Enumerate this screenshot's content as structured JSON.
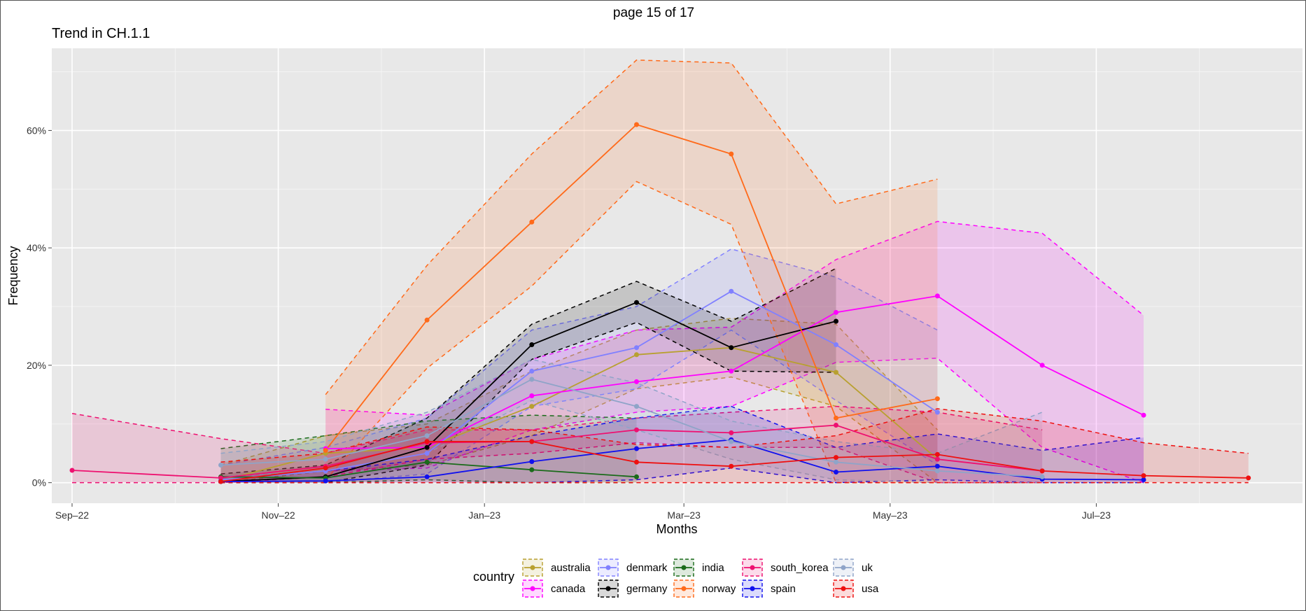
{
  "page_label": "page 15 of 17",
  "chart_data": {
    "type": "line",
    "title": "Trend in CH.1.1",
    "xlabel": "Months",
    "ylabel": "Frequency",
    "x_ticks": [
      "Sep–22",
      "Nov–22",
      "Jan–23",
      "Mar–23",
      "May–23",
      "Jul–23"
    ],
    "x_tick_dates": [
      "2022-09-01",
      "2022-11-01",
      "2023-01-01",
      "2023-03-01",
      "2023-05-01",
      "2023-07-01"
    ],
    "xlim": [
      "2022-08-26",
      "2023-08-31"
    ],
    "y_ticks": [
      "0%",
      "20%",
      "40%",
      "60%"
    ],
    "y_tick_values": [
      0,
      20,
      40,
      60
    ],
    "ylim": [
      -3.5,
      74
    ],
    "y_unit": "%",
    "grid": true,
    "legend_title": "country",
    "legend_position": "bottom",
    "legend_order": [
      "australia",
      "canada",
      "denmark",
      "germany",
      "india",
      "norway",
      "south_korea",
      "spain",
      "uk",
      "usa"
    ],
    "series": [
      {
        "name": "australia",
        "color": "#b8a030",
        "x": [
          "2022-10-15",
          "2022-11-15",
          "2022-12-15",
          "2023-01-15",
          "2023-02-15",
          "2023-03-15",
          "2023-04-15",
          "2023-05-15"
        ],
        "y": [
          0.3,
          5,
          6,
          13,
          21.8,
          23,
          18.8,
          4
        ],
        "upper": [
          3,
          8,
          10,
          19,
          26,
          28,
          27,
          9
        ],
        "lower": [
          0,
          2,
          3,
          8,
          16,
          18,
          13,
          0
        ]
      },
      {
        "name": "canada",
        "color": "#ff00ff",
        "x": [
          "2022-11-15",
          "2022-12-15",
          "2023-01-15",
          "2023-02-15",
          "2023-03-15",
          "2023-04-15",
          "2023-05-15",
          "2023-06-15",
          "2023-07-15"
        ],
        "y": [
          5.8,
          6,
          14.8,
          17.2,
          19,
          29,
          31.8,
          20,
          11.5
        ],
        "upper": [
          12.5,
          11.5,
          21,
          26,
          26.5,
          38,
          44.5,
          42.5,
          28.5
        ],
        "lower": [
          2,
          2.5,
          9,
          12,
          13,
          20.5,
          21.2,
          6,
          0
        ]
      },
      {
        "name": "denmark",
        "color": "#8080ff",
        "x": [
          "2022-10-15",
          "2022-11-15",
          "2022-12-15",
          "2023-01-15",
          "2023-02-15",
          "2023-03-15",
          "2023-04-15",
          "2023-05-15"
        ],
        "y": [
          0.5,
          2,
          5,
          19,
          23,
          32.6,
          23.5,
          12
        ],
        "upper": [
          3,
          6,
          11,
          26,
          30,
          39.8,
          35,
          26
        ],
        "lower": [
          0,
          0,
          1.5,
          13,
          16,
          26,
          14,
          3
        ]
      },
      {
        "name": "germany",
        "color": "#000000",
        "x": [
          "2022-10-15",
          "2022-11-15",
          "2022-12-15",
          "2023-01-15",
          "2023-02-15",
          "2023-03-15",
          "2023-04-15"
        ],
        "y": [
          0.2,
          1,
          6,
          23.5,
          30.7,
          23,
          27.5
        ],
        "upper": [
          1.5,
          3,
          11,
          27,
          34.3,
          27.5,
          36.5
        ],
        "lower": [
          0,
          0,
          3,
          21,
          27.3,
          19,
          18.8
        ]
      },
      {
        "name": "india",
        "color": "#1a6b1a",
        "x": [
          "2022-10-15",
          "2022-11-15",
          "2022-12-15",
          "2023-01-15",
          "2023-02-15"
        ],
        "y": [
          1,
          0.8,
          3.5,
          2.2,
          1
        ],
        "upper": [
          5.8,
          8,
          10.5,
          11.5,
          11
        ],
        "lower": [
          0,
          0,
          0.5,
          0,
          0
        ]
      },
      {
        "name": "norway",
        "color": "#ff6a1a",
        "x": [
          "2022-11-15",
          "2022-12-15",
          "2023-01-15",
          "2023-02-15",
          "2023-03-15",
          "2023-04-15",
          "2023-05-15"
        ],
        "y": [
          5.5,
          27.7,
          44.4,
          61,
          56,
          11,
          14.3
        ],
        "upper": [
          15,
          37,
          56,
          72,
          71.5,
          47.5,
          51.7
        ],
        "lower": [
          0.5,
          19.5,
          33.5,
          51.3,
          44,
          0,
          0
        ]
      },
      {
        "name": "south_korea",
        "color": "#ee1070",
        "x": [
          "2022-09-01",
          "2022-10-15",
          "2022-11-15",
          "2022-12-15",
          "2023-01-15",
          "2023-02-15",
          "2023-03-15",
          "2023-04-15",
          "2023-05-15",
          "2023-06-15"
        ],
        "y": [
          2.1,
          0.8,
          2.8,
          6.8,
          7,
          9,
          8.5,
          9.8,
          4,
          2
        ],
        "upper": [
          11.8,
          7.5,
          5,
          9,
          9,
          11,
          12,
          13,
          12,
          9
        ],
        "lower": [
          0,
          0,
          1,
          4,
          5,
          6.8,
          6,
          6,
          0,
          0
        ]
      },
      {
        "name": "spain",
        "color": "#1010ee",
        "x": [
          "2022-10-15",
          "2022-11-15",
          "2022-12-15",
          "2023-01-15",
          "2023-02-15",
          "2023-03-15",
          "2023-04-15",
          "2023-05-15",
          "2023-06-15",
          "2023-07-15"
        ],
        "y": [
          0.2,
          0.3,
          1,
          3.6,
          5.8,
          7.3,
          1.8,
          2.8,
          0.6,
          0.5
        ],
        "upper": [
          1,
          2,
          4,
          8,
          11,
          13,
          6,
          8.3,
          5.5,
          7.7
        ],
        "lower": [
          0,
          0,
          0,
          0,
          0.5,
          2.5,
          0,
          0.5,
          0,
          0
        ]
      },
      {
        "name": "uk",
        "color": "#8fa4c8",
        "x": [
          "2022-10-15",
          "2022-11-15",
          "2022-12-15",
          "2023-01-15",
          "2023-02-15",
          "2023-03-15",
          "2023-04-15",
          "2023-05-15",
          "2023-06-15"
        ],
        "y": [
          3,
          4,
          8,
          17.6,
          13,
          7,
          3.5,
          2,
          1
        ],
        "upper": [
          5,
          7,
          12,
          21,
          17,
          10.5,
          7,
          5,
          12
        ],
        "lower": [
          1,
          2,
          5,
          14,
          9,
          4,
          0.5,
          0,
          0
        ]
      },
      {
        "name": "usa",
        "color": "#ee1010",
        "x": [
          "2022-10-15",
          "2022-11-15",
          "2022-12-15",
          "2023-01-15",
          "2023-02-15",
          "2023-03-15",
          "2023-04-15",
          "2023-05-15",
          "2023-06-15",
          "2023-07-15",
          "2023-08-15"
        ],
        "y": [
          0.2,
          2.5,
          7,
          7,
          3.5,
          2.8,
          4.3,
          4.8,
          2,
          1.2,
          0.8
        ],
        "upper": [
          3.5,
          5,
          9.5,
          9,
          6.5,
          6,
          8,
          12.6,
          10.5,
          6.8,
          5
        ],
        "lower": [
          0,
          0,
          0,
          0,
          0,
          0,
          0,
          0,
          0,
          0,
          0
        ]
      }
    ]
  }
}
